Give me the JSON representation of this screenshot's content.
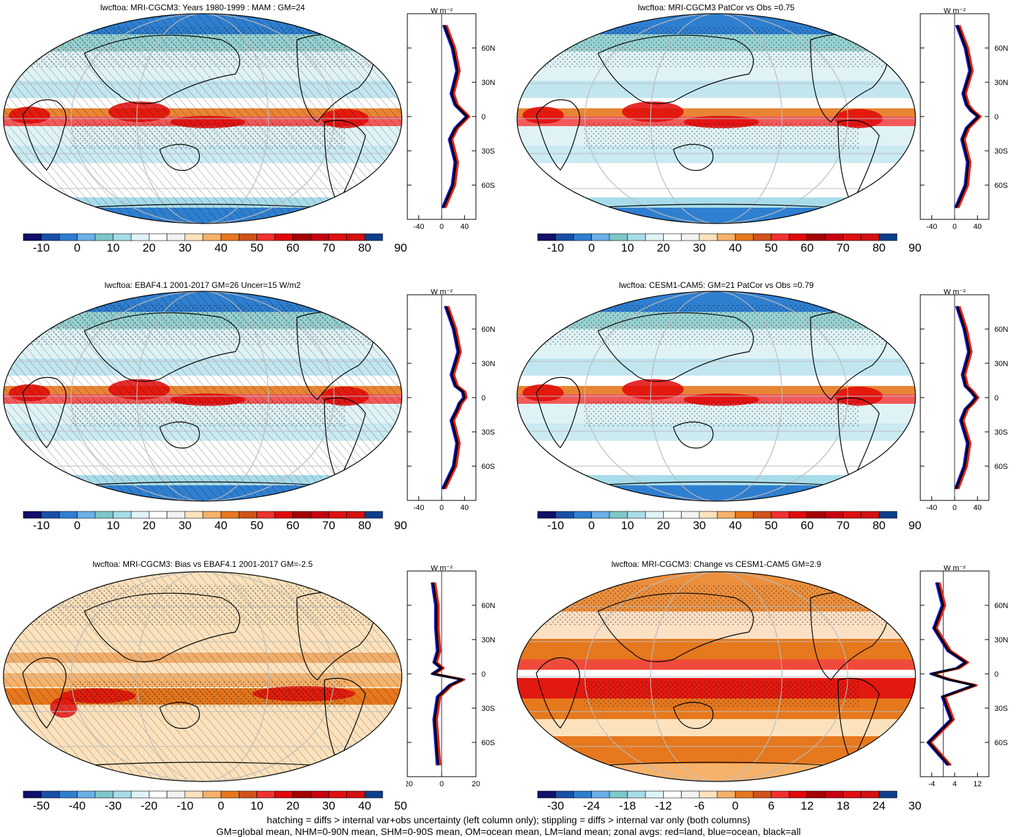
{
  "panels": [
    {
      "title": "lwcftoa: MRI-CGCM3: Years 1980-1999 : MAM : GM=24",
      "colorbar": {
        "labels": [
          "-10",
          "0",
          "10",
          "20",
          "30",
          "40",
          "50",
          "60",
          "70",
          "80",
          "90"
        ],
        "kind": "abs"
      },
      "zonal": {
        "xticks": [
          "-40",
          "0",
          "40"
        ],
        "xrange": [
          -60,
          60
        ],
        "unit": "W m⁻²",
        "lat_labels": [
          "60N",
          "30N",
          "0",
          "30S",
          "60S"
        ]
      },
      "hatch": true
    },
    {
      "title": "lwcftoa: MRI-CGCM3 PatCor vs Obs =0.75",
      "colorbar": {
        "labels": [
          "-10",
          "0",
          "10",
          "20",
          "30",
          "40",
          "50",
          "60",
          "70",
          "80",
          "90"
        ],
        "kind": "abs"
      },
      "zonal": {
        "xticks": [
          "-40",
          "0",
          "40"
        ],
        "xrange": [
          -60,
          60
        ],
        "unit": "W m⁻²",
        "lat_labels": [
          "60N",
          "30N",
          "0",
          "30S",
          "60S"
        ]
      },
      "hatch": false
    },
    {
      "title": "lwcftoa: EBAF4.1 2001-2017 GM=26 Uncer=15 W/m2",
      "colorbar": {
        "labels": [
          "-10",
          "0",
          "10",
          "20",
          "30",
          "40",
          "50",
          "60",
          "70",
          "80",
          "90"
        ],
        "kind": "abs"
      },
      "zonal": {
        "xticks": [
          "-40",
          "0",
          "40"
        ],
        "xrange": [
          -60,
          60
        ],
        "unit": "W m⁻²",
        "lat_labels": [
          "60N",
          "30N",
          "0",
          "30S",
          "60S"
        ]
      },
      "hatch": true
    },
    {
      "title": "lwcftoa: CESM1-CAM5: GM=21 PatCor vs Obs =0.79",
      "colorbar": {
        "labels": [
          "-10",
          "0",
          "10",
          "20",
          "30",
          "40",
          "50",
          "60",
          "70",
          "80",
          "90"
        ],
        "kind": "abs"
      },
      "zonal": {
        "xticks": [
          "-40",
          "0",
          "40"
        ],
        "xrange": [
          -60,
          60
        ],
        "unit": "W m⁻²",
        "lat_labels": [
          "60N",
          "30N",
          "0",
          "30S",
          "60S"
        ]
      },
      "hatch": false
    },
    {
      "title": "lwcftoa: MRI-CGCM3: Bias vs EBAF4.1 2001-2017 GM=-2.5",
      "colorbar": {
        "labels": [
          "-50",
          "-40",
          "-30",
          "-20",
          "-10",
          "0",
          "10",
          "20",
          "30",
          "40",
          "50"
        ],
        "kind": "diff"
      },
      "zonal": {
        "xticks": [
          "-20",
          "0",
          "20"
        ],
        "xrange": [
          -20,
          20
        ],
        "unit": "W m⁻²",
        "lat_labels": [
          "60N",
          "30N",
          "0",
          "30S",
          "60S"
        ]
      },
      "hatch": true
    },
    {
      "title": "lwcftoa: MRI-CGCM3: Change vs CESM1-CAM5 GM=2.9",
      "colorbar": {
        "labels": [
          "-30",
          "-24",
          "-18",
          "-12",
          "-6",
          "0",
          "6",
          "12",
          "18",
          "24",
          "30"
        ],
        "kind": "change"
      },
      "zonal": {
        "xticks": [
          "-4",
          "4",
          "12"
        ],
        "xrange": [
          -8,
          16
        ],
        "unit": "W m⁻²",
        "lat_labels": [
          "60N",
          "30N",
          "0",
          "30S",
          "60S"
        ]
      },
      "hatch": false
    }
  ],
  "colors": {
    "abs": [
      "#10106a",
      "#1a4fa8",
      "#2f7fd0",
      "#6bb0e8",
      "#7dc8c8",
      "#a8dcea",
      "#dff3f7",
      "#ffffff",
      "#f2f2f2",
      "#fbe2bc",
      "#f6b26b",
      "#e6781e",
      "#d0531a",
      "#f03030",
      "#e00808",
      "#a40000",
      "#c80010",
      "#e01010",
      "#d41010",
      "#0d3f8a"
    ],
    "diff": [
      "#10106a",
      "#1a4fa8",
      "#2f7fd0",
      "#6bb0e8",
      "#7dc8c8",
      "#a8dcea",
      "#dff3f7",
      "#ffffff",
      "#f2f2f2",
      "#fbe2bc",
      "#f6b26b",
      "#e6781e",
      "#d0531a",
      "#f03030",
      "#e00808",
      "#a40000",
      "#c80010",
      "#e01010",
      "#d41010",
      "#0d3f8a"
    ],
    "change": [
      "#10106a",
      "#1a4fa8",
      "#2f7fd0",
      "#6bb0e8",
      "#7dc8c8",
      "#a8dcea",
      "#dff3f7",
      "#ffffff",
      "#f2f2f2",
      "#fbe2bc",
      "#f6b26b",
      "#e6781e",
      "#d0531a",
      "#f03030",
      "#e00808",
      "#a40000",
      "#c80010",
      "#e01010",
      "#d41010",
      "#0d3f8a"
    ],
    "land": "#e02020",
    "ocean": "#1a1ad0",
    "all": "#000000"
  },
  "footer": {
    "line1": "hatching = diffs > internal var+obs uncertainty (left column only); stippling = diffs > internal var only (both columns)",
    "line2": "GM=global mean, NHM=0-90N mean, SHM=0-90S mean, OM=ocean mean, LM=land mean; zonal avgs: red=land, blue=ocean, black=all"
  },
  "chart_data": [
    {
      "type": "map",
      "title": "lwcftoa: MRI-CGCM3: Years 1980-1999 : MAM : GM=24",
      "colorbar": [
        -10,
        0,
        10,
        20,
        30,
        40,
        50,
        60,
        70,
        80,
        90
      ],
      "zonal_mean": {
        "lat": [
          80,
          60,
          40,
          20,
          10,
          5,
          0,
          -5,
          -10,
          -20,
          -40,
          -60,
          -80
        ],
        "all": [
          5,
          20,
          28,
          18,
          25,
          35,
          45,
          35,
          25,
          15,
          25,
          20,
          3
        ]
      }
    },
    {
      "type": "map",
      "title": "lwcftoa: MRI-CGCM3 PatCor vs Obs =0.75",
      "colorbar": [
        -10,
        0,
        10,
        20,
        30,
        40,
        50,
        60,
        70,
        80,
        90
      ],
      "zonal_mean": {
        "lat": [
          80,
          60,
          40,
          20,
          10,
          5,
          0,
          -5,
          -10,
          -20,
          -40,
          -60,
          -80
        ],
        "all": [
          5,
          20,
          28,
          16,
          22,
          30,
          42,
          32,
          22,
          14,
          24,
          20,
          3
        ]
      }
    },
    {
      "type": "map",
      "title": "lwcftoa: EBAF4.1 2001-2017 GM=26 Uncer=15 W/m2",
      "colorbar": [
        -10,
        0,
        10,
        20,
        30,
        40,
        50,
        60,
        70,
        80,
        90
      ],
      "zonal_mean": {
        "lat": [
          80,
          60,
          40,
          20,
          10,
          5,
          0,
          -5,
          -10,
          -20,
          -40,
          -60,
          -80
        ],
        "all": [
          8,
          22,
          30,
          18,
          25,
          38,
          40,
          32,
          28,
          18,
          28,
          22,
          3
        ]
      }
    },
    {
      "type": "map",
      "title": "lwcftoa: CESM1-CAM5: GM=21 PatCor vs Obs =0.79",
      "colorbar": [
        -10,
        0,
        10,
        20,
        30,
        40,
        50,
        60,
        70,
        80,
        90
      ],
      "zonal_mean": {
        "lat": [
          80,
          60,
          40,
          20,
          10,
          5,
          0,
          -5,
          -10,
          -20,
          -40,
          -60,
          -80
        ],
        "all": [
          5,
          18,
          26,
          15,
          20,
          30,
          38,
          30,
          20,
          12,
          24,
          18,
          3
        ]
      }
    },
    {
      "type": "map",
      "title": "lwcftoa: MRI-CGCM3: Bias vs EBAF4.1 2001-2017 GM=-2.5",
      "colorbar": [
        -50,
        -40,
        -30,
        -20,
        -10,
        0,
        10,
        20,
        30,
        40,
        50
      ],
      "zonal_mean": {
        "lat": [
          80,
          60,
          40,
          20,
          10,
          5,
          0,
          -5,
          -10,
          -20,
          -40,
          -60,
          -80
        ],
        "all": [
          -5,
          -3,
          -3,
          -2,
          -4,
          0,
          -5,
          12,
          5,
          -2,
          -4,
          -3,
          -2
        ]
      }
    },
    {
      "type": "map",
      "title": "lwcftoa: MRI-CGCM3: Change vs CESM1-CAM5 GM=2.9",
      "colorbar": [
        -30,
        -24,
        -18,
        -12,
        -6,
        0,
        6,
        12,
        18,
        24,
        30
      ],
      "zonal_mean": {
        "lat": [
          80,
          60,
          40,
          20,
          10,
          5,
          0,
          -5,
          -10,
          -20,
          -40,
          -60,
          -80
        ],
        "all": [
          -2,
          0,
          -3,
          2,
          8,
          5,
          -4,
          2,
          11,
          0,
          3,
          -5,
          2
        ]
      }
    }
  ]
}
